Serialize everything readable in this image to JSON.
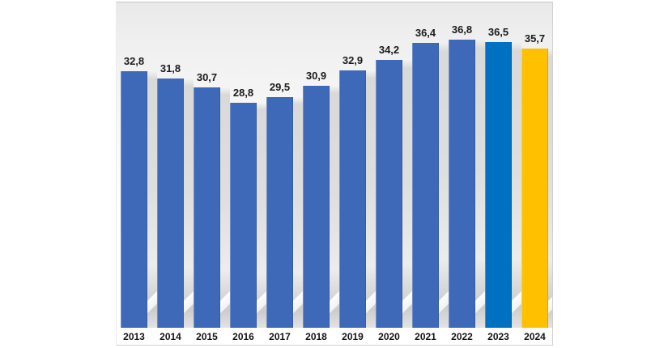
{
  "chart_data": {
    "type": "bar",
    "title": "",
    "xlabel": "",
    "ylabel": "",
    "categories": [
      "2013",
      "2014",
      "2015",
      "2016",
      "2017",
      "2018",
      "2019",
      "2020",
      "2021",
      "2022",
      "2023",
      "2024"
    ],
    "values": [
      32.8,
      31.8,
      30.7,
      28.8,
      29.5,
      30.9,
      32.9,
      34.2,
      36.4,
      36.8,
      36.5,
      35.7
    ],
    "value_labels": [
      "32,8",
      "31,8",
      "30,7",
      "28,8",
      "29,5",
      "30,9",
      "32,9",
      "34,2",
      "36,4",
      "36,8",
      "36,5",
      "35,7"
    ],
    "decimal_separator": ",",
    "ylim": [
      0,
      41.6
    ],
    "grid": "off",
    "legend": "none",
    "axis_lines": "none",
    "colors": {
      "bar_default": "#3E69B8",
      "bar_2023": "#0070C0",
      "bar_2024": "#FFC000",
      "label_text": "#1B1B1B",
      "year_text": "#141414",
      "panel_top": "#E9E9E9",
      "panel_bottom": "#FFFFFF",
      "panel_border": "#CFCFCF",
      "gap_shadow": "#D9D9D9"
    }
  }
}
